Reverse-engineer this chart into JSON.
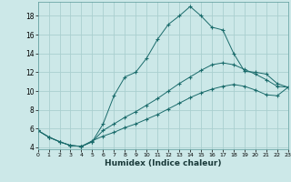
{
  "xlabel": "Humidex (Indice chaleur)",
  "background_color": "#cce8e8",
  "grid_color": "#aacfcf",
  "line_color": "#1a6b6b",
  "x_values": [
    0,
    1,
    2,
    3,
    4,
    5,
    6,
    7,
    8,
    9,
    10,
    11,
    12,
    13,
    14,
    15,
    16,
    17,
    18,
    19,
    20,
    21,
    22,
    23
  ],
  "line1_y": [
    5.8,
    5.1,
    4.6,
    4.2,
    4.1,
    4.6,
    6.5,
    9.5,
    11.5,
    12.0,
    13.5,
    15.5,
    17.1,
    18.0,
    19.0,
    18.0,
    16.8,
    16.5,
    14.0,
    12.1,
    12.0,
    11.8,
    10.8,
    10.4
  ],
  "line2_y": [
    5.8,
    5.1,
    4.6,
    4.2,
    4.1,
    4.6,
    5.8,
    6.5,
    7.2,
    7.8,
    8.5,
    9.2,
    10.0,
    10.8,
    11.5,
    12.2,
    12.8,
    13.0,
    12.8,
    12.3,
    11.8,
    11.2,
    10.5,
    10.4
  ],
  "line3_y": [
    5.8,
    5.1,
    4.6,
    4.2,
    4.1,
    4.7,
    5.2,
    5.6,
    6.1,
    6.5,
    7.0,
    7.5,
    8.1,
    8.7,
    9.3,
    9.8,
    10.2,
    10.5,
    10.7,
    10.5,
    10.1,
    9.6,
    9.5,
    10.4
  ],
  "xlim": [
    0,
    23
  ],
  "ylim": [
    3.8,
    19.5
  ],
  "yticks": [
    4,
    6,
    8,
    10,
    12,
    14,
    16,
    18
  ],
  "xticks": [
    0,
    1,
    2,
    3,
    4,
    5,
    6,
    7,
    8,
    9,
    10,
    11,
    12,
    13,
    14,
    15,
    16,
    17,
    18,
    19,
    20,
    21,
    22,
    23
  ]
}
